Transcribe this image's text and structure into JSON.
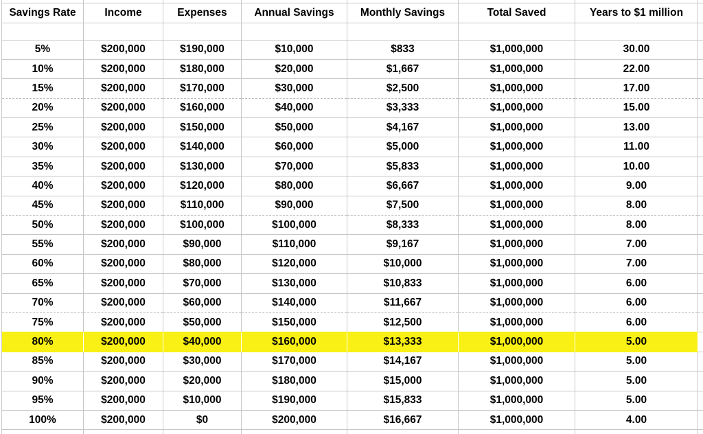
{
  "sheet": {
    "columns": [
      "Savings Rate",
      "Income",
      "Expenses",
      "Annual Savings",
      "Monthly Savings",
      "Total Saved",
      "Years to $1 million"
    ],
    "rows": [
      [
        "5%",
        "$200,000",
        "$190,000",
        "$10,000",
        "$833",
        "$1,000,000",
        "30.00"
      ],
      [
        "10%",
        "$200,000",
        "$180,000",
        "$20,000",
        "$1,667",
        "$1,000,000",
        "22.00"
      ],
      [
        "15%",
        "$200,000",
        "$170,000",
        "$30,000",
        "$2,500",
        "$1,000,000",
        "17.00"
      ],
      [
        "20%",
        "$200,000",
        "$160,000",
        "$40,000",
        "$3,333",
        "$1,000,000",
        "15.00"
      ],
      [
        "25%",
        "$200,000",
        "$150,000",
        "$50,000",
        "$4,167",
        "$1,000,000",
        "13.00"
      ],
      [
        "30%",
        "$200,000",
        "$140,000",
        "$60,000",
        "$5,000",
        "$1,000,000",
        "11.00"
      ],
      [
        "35%",
        "$200,000",
        "$130,000",
        "$70,000",
        "$5,833",
        "$1,000,000",
        "10.00"
      ],
      [
        "40%",
        "$200,000",
        "$120,000",
        "$80,000",
        "$6,667",
        "$1,000,000",
        "9.00"
      ],
      [
        "45%",
        "$200,000",
        "$110,000",
        "$90,000",
        "$7,500",
        "$1,000,000",
        "8.00"
      ],
      [
        "50%",
        "$200,000",
        "$100,000",
        "$100,000",
        "$8,333",
        "$1,000,000",
        "8.00"
      ],
      [
        "55%",
        "$200,000",
        "$90,000",
        "$110,000",
        "$9,167",
        "$1,000,000",
        "7.00"
      ],
      [
        "60%",
        "$200,000",
        "$80,000",
        "$120,000",
        "$10,000",
        "$1,000,000",
        "7.00"
      ],
      [
        "65%",
        "$200,000",
        "$70,000",
        "$130,000",
        "$10,833",
        "$1,000,000",
        "6.00"
      ],
      [
        "70%",
        "$200,000",
        "$60,000",
        "$140,000",
        "$11,667",
        "$1,000,000",
        "6.00"
      ],
      [
        "75%",
        "$200,000",
        "$50,000",
        "$150,000",
        "$12,500",
        "$1,000,000",
        "6.00"
      ],
      [
        "80%",
        "$200,000",
        "$40,000",
        "$160,000",
        "$13,333",
        "$1,000,000",
        "5.00"
      ],
      [
        "85%",
        "$200,000",
        "$30,000",
        "$170,000",
        "$14,167",
        "$1,000,000",
        "5.00"
      ],
      [
        "90%",
        "$200,000",
        "$20,000",
        "$180,000",
        "$15,000",
        "$1,000,000",
        "5.00"
      ],
      [
        "95%",
        "$200,000",
        "$10,000",
        "$190,000",
        "$15,833",
        "$1,000,000",
        "5.00"
      ],
      [
        "100%",
        "$200,000",
        "$0",
        "$200,000",
        "$16,667",
        "$1,000,000",
        "4.00"
      ]
    ],
    "highlighted_row_index": 15,
    "highlighted_savings_rate": "80%",
    "page_break_after_rows": [
      2,
      8,
      13
    ],
    "colors": {
      "highlight": "#f9f015",
      "gridline": "#c7c7c7",
      "text": "#000000",
      "background": "#ffffff"
    }
  }
}
